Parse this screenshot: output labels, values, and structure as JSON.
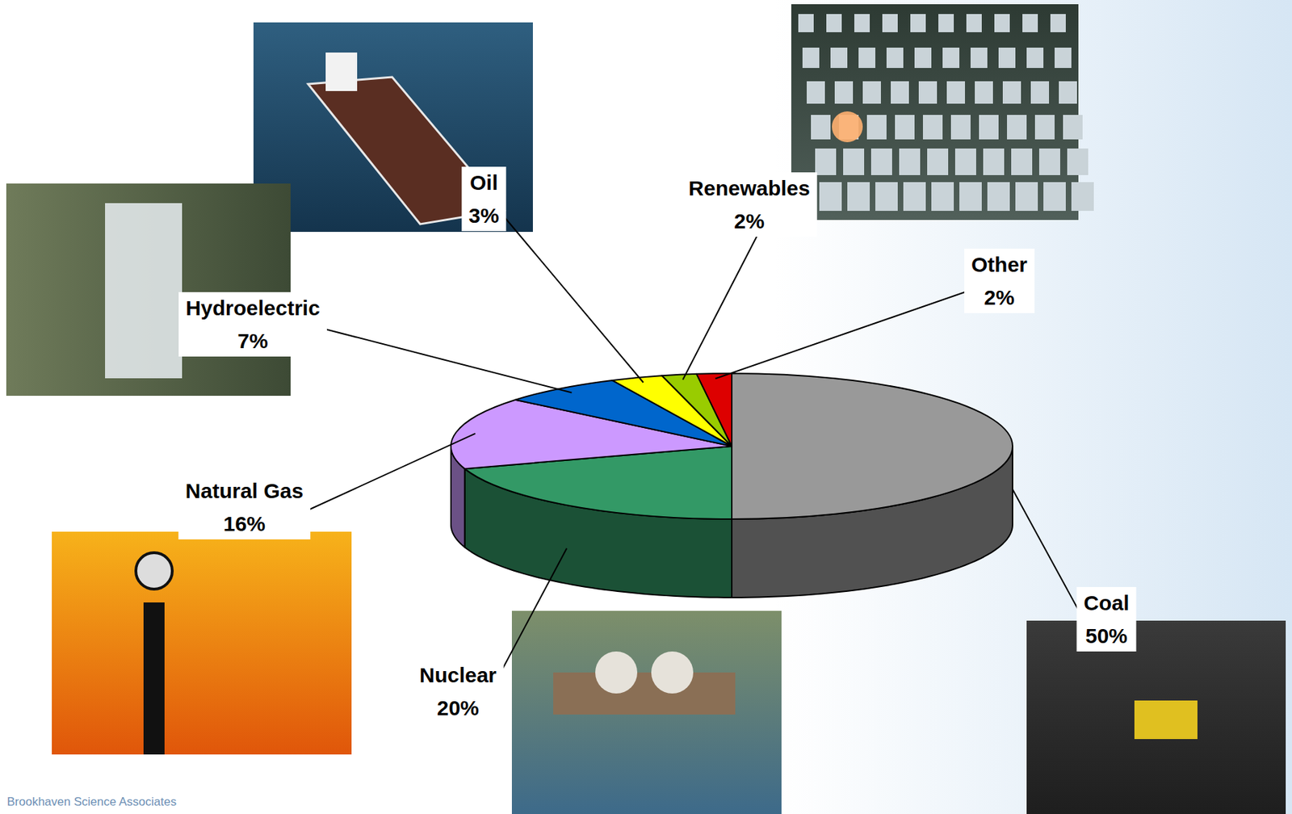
{
  "chart_data": {
    "type": "pie",
    "categories": [
      "Coal",
      "Nuclear",
      "Natural Gas",
      "Hydroelectric",
      "Oil",
      "Renewables",
      "Other"
    ],
    "values": [
      50,
      20,
      16,
      7,
      3,
      2,
      2
    ],
    "value_labels": [
      "50%",
      "20%",
      "16%",
      "7%",
      "3%",
      "2%",
      "2%"
    ],
    "colors": [
      "#999999",
      "#339966",
      "#cc99ff",
      "#0066cc",
      "#ffff00",
      "#99cc00",
      "#dd0000"
    ],
    "data_labels": true
  },
  "footer": "Brookhaven Science Associates"
}
